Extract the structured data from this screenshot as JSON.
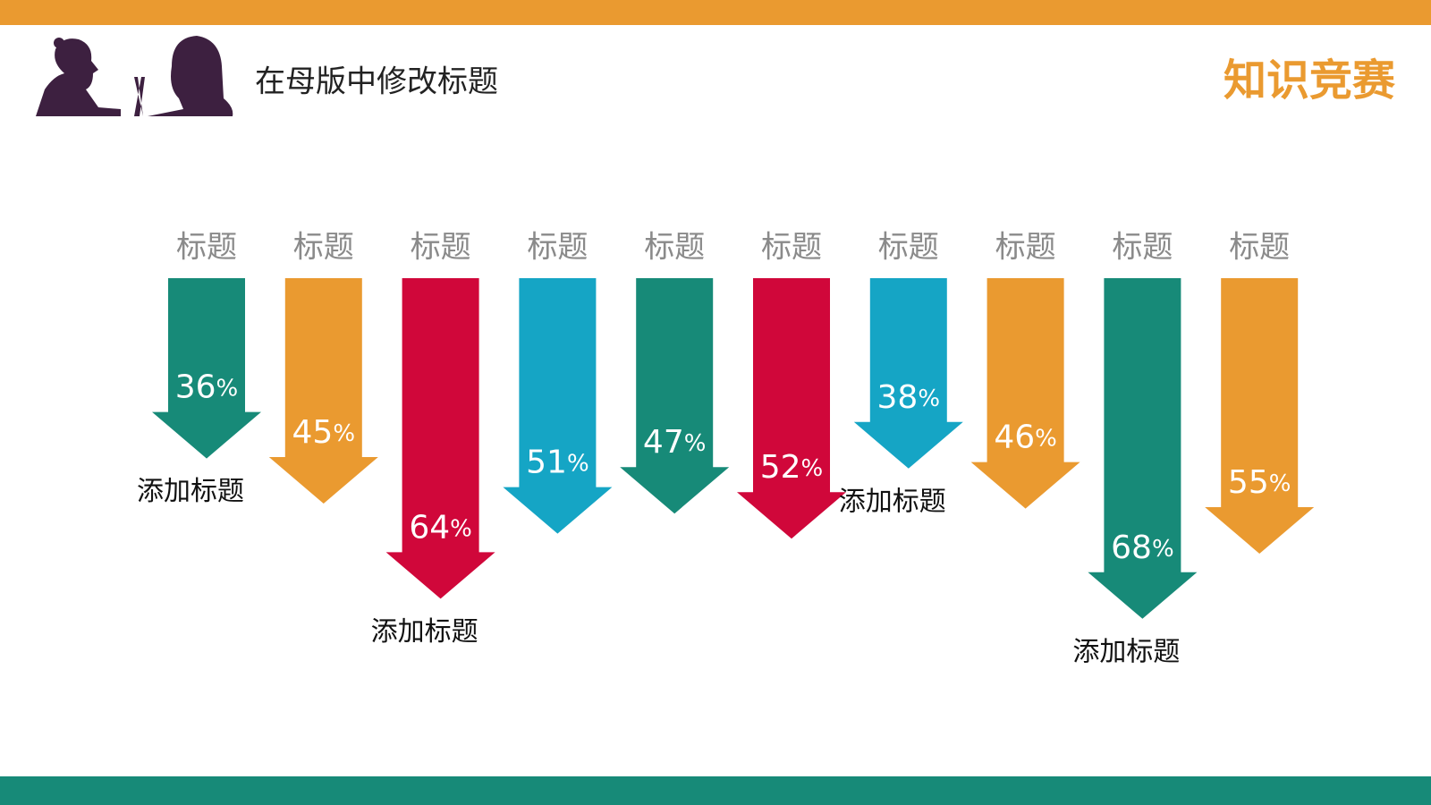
{
  "header": {
    "title": "在母版中修改标题",
    "logo": "知识竞赛"
  },
  "chart_data": {
    "type": "arrow",
    "categories": [
      "标题",
      "标题",
      "标题",
      "标题",
      "标题",
      "标题",
      "标题",
      "标题",
      "标题",
      "标题"
    ],
    "values": [
      36,
      45,
      64,
      51,
      47,
      52,
      38,
      46,
      68,
      55
    ],
    "value_labels": [
      "36%",
      "45%",
      "64%",
      "51%",
      "47%",
      "52%",
      "38%",
      "46%",
      "68%",
      "55%"
    ],
    "colors": [
      "#178a78",
      "#ea9a30",
      "#d0073a",
      "#15a5c5",
      "#178a78",
      "#d0073a",
      "#15a5c5",
      "#ea9a30",
      "#178a78",
      "#ea9a30"
    ],
    "annotations": [
      "添加标题",
      null,
      "添加标题",
      null,
      null,
      null,
      "添加标题",
      null,
      "添加标题",
      null
    ]
  }
}
